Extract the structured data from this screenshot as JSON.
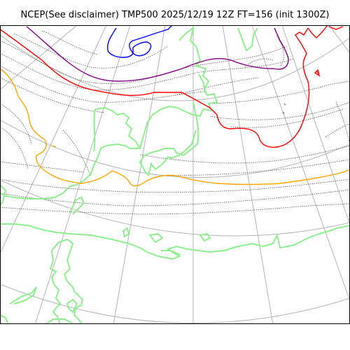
{
  "title": "NCEP(See disclaimer) TMP500 2025/12/19 12Z FT=156 (init 1300Z)",
  "colors": {
    "frame": "#000000",
    "graticule": "#b4b4b4",
    "isoline_dotted": "#555555",
    "coastline": "#90ee90",
    "temp_contour_purple": "#800080",
    "temp_contour_red": "#ff0000",
    "temp_contour_orange": "#ffa500",
    "temp_contour_blue": "#0000ff"
  },
  "layers": [
    {
      "name": "graticule",
      "icon": "lat-lon-grid"
    },
    {
      "name": "isotherms-dotted",
      "icon": "dotted-contour"
    },
    {
      "name": "coastlines",
      "icon": "coastline"
    },
    {
      "name": "temperature-contours",
      "icon": "colored-contour"
    }
  ]
}
